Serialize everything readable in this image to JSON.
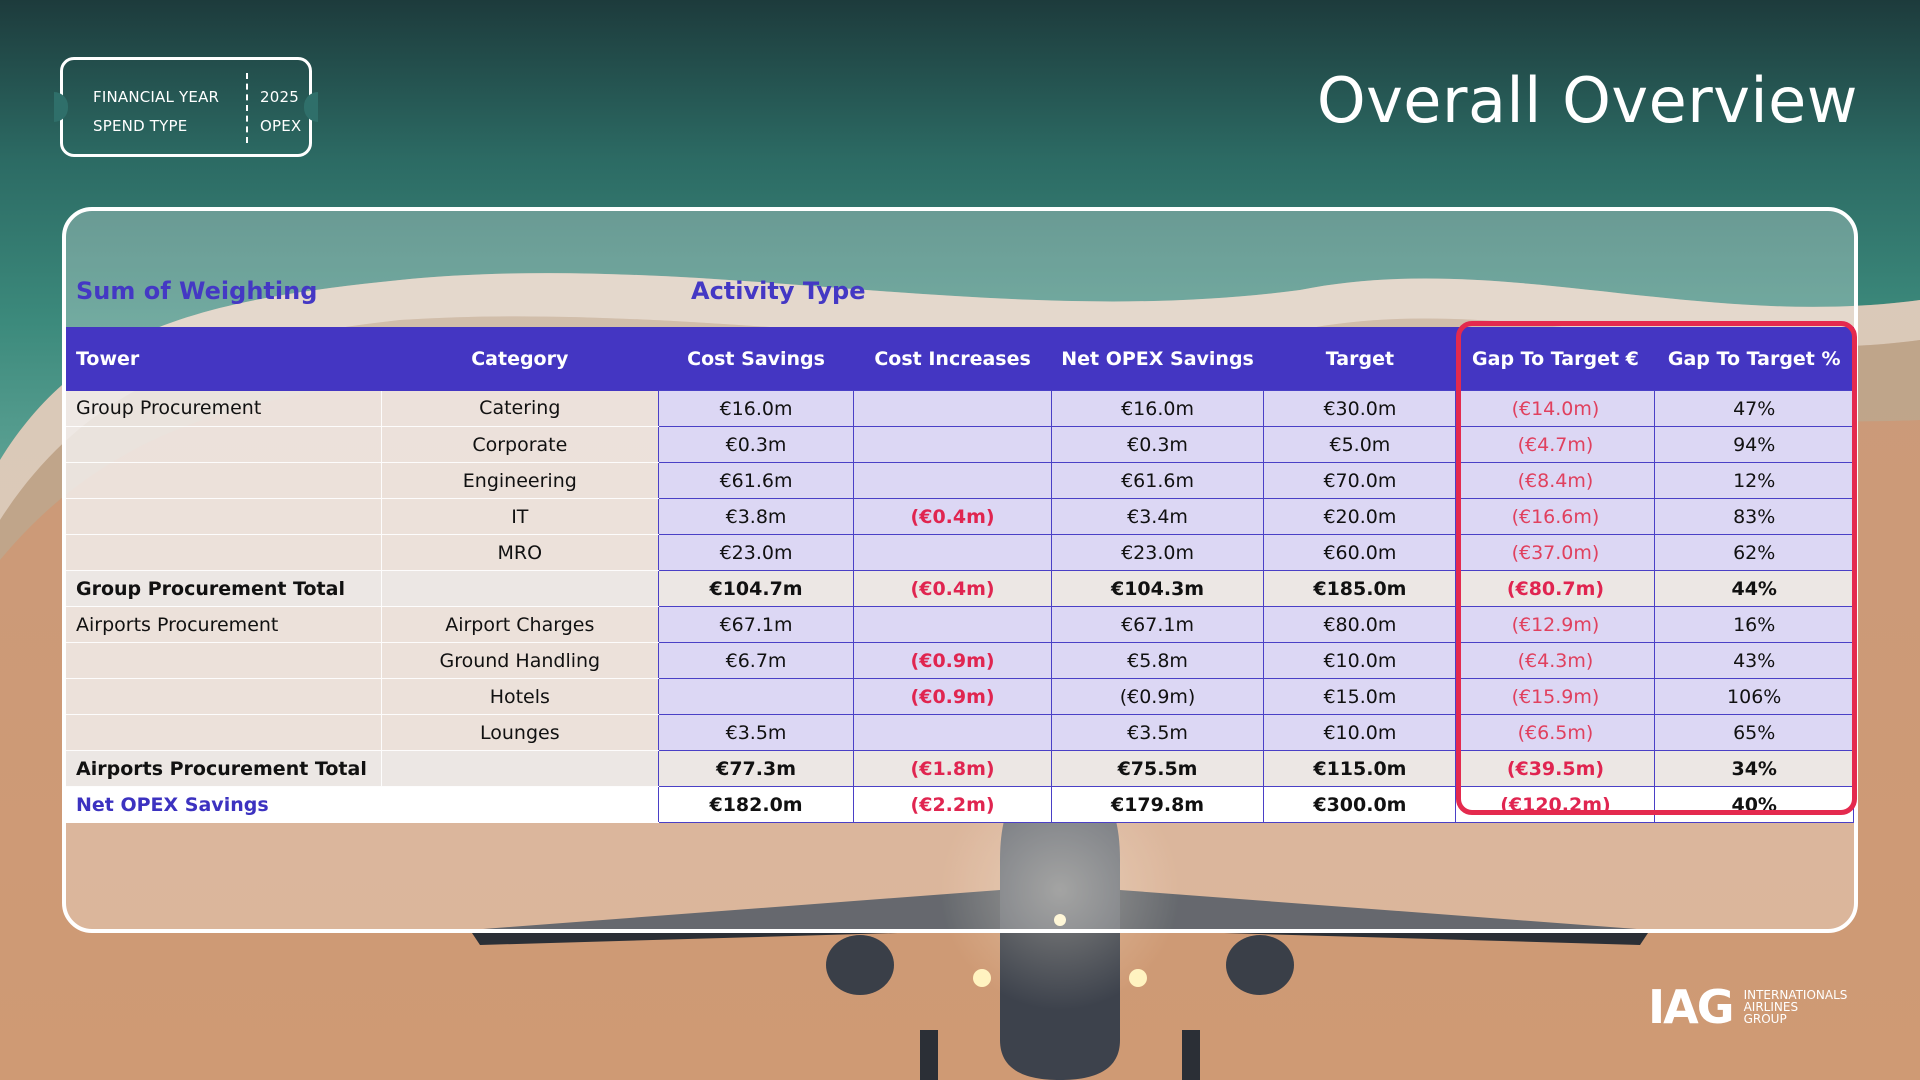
{
  "filters": {
    "financial_year_label": "FINANCIAL YEAR",
    "financial_year_value": "2025",
    "spend_type_label": "SPEND TYPE",
    "spend_type_value": "OPEX"
  },
  "title": "Overall Overview",
  "table": {
    "row_field_label": "Sum of Weighting",
    "column_field_label": "Activity Type",
    "headers": {
      "tower": "Tower",
      "category": "Category",
      "cost_savings": "Cost Savings",
      "cost_increases": "Cost Increases",
      "net_opex_savings": "Net OPEX Savings",
      "target": "Target",
      "gap_eur": "Gap To Target €",
      "gap_pct": "Gap To Target %"
    },
    "rows": [
      {
        "tower": "Group Procurement",
        "category": "Catering",
        "cost_savings": "€16.0m",
        "cost_increases": "",
        "net_opex_savings": "€16.0m",
        "target": "€30.0m",
        "gap_eur": "(€14.0m)",
        "gap_pct": "47%"
      },
      {
        "tower": "",
        "category": "Corporate",
        "cost_savings": "€0.3m",
        "cost_increases": "",
        "net_opex_savings": "€0.3m",
        "target": "€5.0m",
        "gap_eur": "(€4.7m)",
        "gap_pct": "94%"
      },
      {
        "tower": "",
        "category": "Engineering",
        "cost_savings": "€61.6m",
        "cost_increases": "",
        "net_opex_savings": "€61.6m",
        "target": "€70.0m",
        "gap_eur": "(€8.4m)",
        "gap_pct": "12%"
      },
      {
        "tower": "",
        "category": "IT",
        "cost_savings": "€3.8m",
        "cost_increases": "(€0.4m)",
        "net_opex_savings": "€3.4m",
        "target": "€20.0m",
        "gap_eur": "(€16.6m)",
        "gap_pct": "83%"
      },
      {
        "tower": "",
        "category": "MRO",
        "cost_savings": "€23.0m",
        "cost_increases": "",
        "net_opex_savings": "€23.0m",
        "target": "€60.0m",
        "gap_eur": "(€37.0m)",
        "gap_pct": "62%"
      },
      {
        "tower": "Group Procurement Total",
        "category": "",
        "cost_savings": "€104.7m",
        "cost_increases": "(€0.4m)",
        "net_opex_savings": "€104.3m",
        "target": "€185.0m",
        "gap_eur": "(€80.7m)",
        "gap_pct": "44%"
      },
      {
        "tower": "Airports Procurement",
        "category": "Airport Charges",
        "cost_savings": "€67.1m",
        "cost_increases": "",
        "net_opex_savings": "€67.1m",
        "target": "€80.0m",
        "gap_eur": "(€12.9m)",
        "gap_pct": "16%"
      },
      {
        "tower": "",
        "category": "Ground Handling",
        "cost_savings": "€6.7m",
        "cost_increases": "(€0.9m)",
        "net_opex_savings": "€5.8m",
        "target": "€10.0m",
        "gap_eur": "(€4.3m)",
        "gap_pct": "43%"
      },
      {
        "tower": "",
        "category": "Hotels",
        "cost_savings": "",
        "cost_increases": "(€0.9m)",
        "net_opex_savings": "(€0.9m)",
        "target": "€15.0m",
        "gap_eur": "(€15.9m)",
        "gap_pct": "106%"
      },
      {
        "tower": "",
        "category": "Lounges",
        "cost_savings": "€3.5m",
        "cost_increases": "",
        "net_opex_savings": "€3.5m",
        "target": "€10.0m",
        "gap_eur": "(€6.5m)",
        "gap_pct": "65%"
      },
      {
        "tower": "Airports Procurement Total",
        "category": "",
        "cost_savings": "€77.3m",
        "cost_increases": "(€1.8m)",
        "net_opex_savings": "€75.5m",
        "target": "€115.0m",
        "gap_eur": "(€39.5m)",
        "gap_pct": "34%"
      },
      {
        "tower": "Net OPEX Savings",
        "category": "",
        "cost_savings": "€182.0m",
        "cost_increases": "(€2.2m)",
        "net_opex_savings": "€179.8m",
        "target": "€300.0m",
        "gap_eur": "(€120.2m)",
        "gap_pct": "40%"
      }
    ]
  },
  "logo": {
    "mark": "IAG",
    "line1": "INTERNATIONALS",
    "line2": "AIRLINES",
    "line3": "GROUP"
  },
  "colors": {
    "header_bg": "#4436c2",
    "value_cell_bg": "#dcd7f4",
    "negative_text": "#e02550",
    "highlight_border": "#e42a4e"
  }
}
